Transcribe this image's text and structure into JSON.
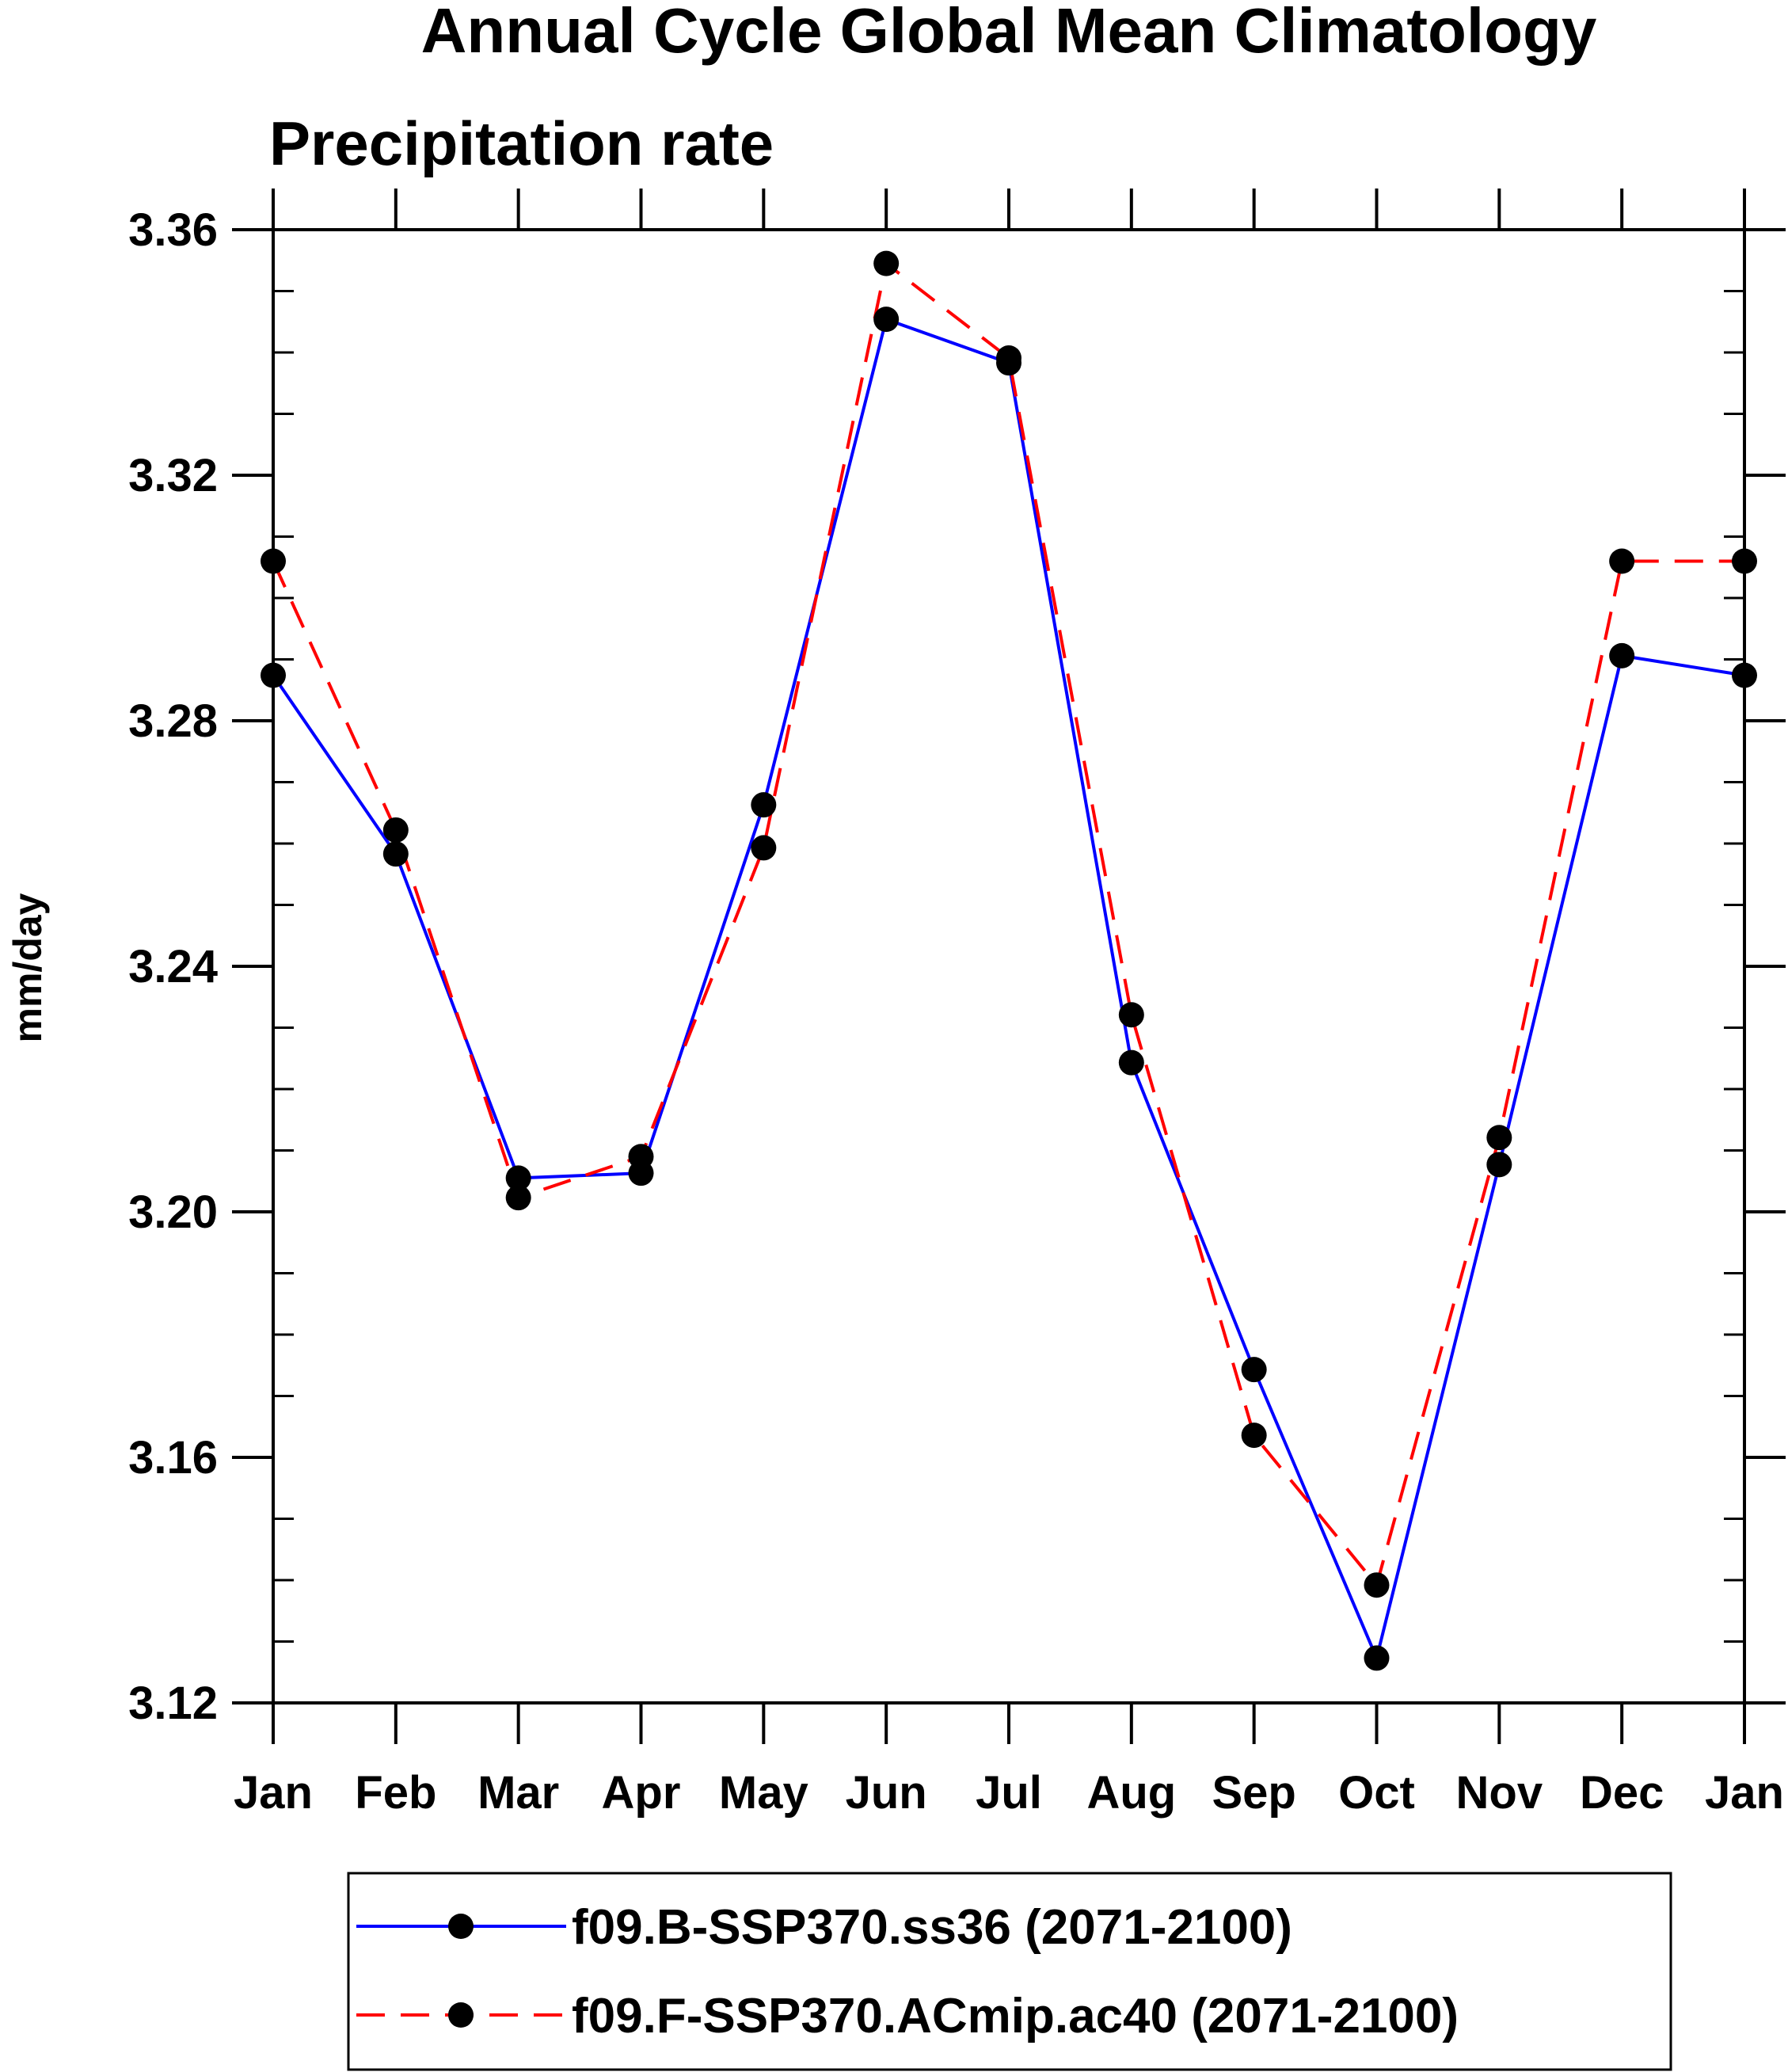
{
  "chart_data": {
    "type": "line",
    "title": "Annual Cycle Global Mean Climatology",
    "subtitle": "Precipitation rate",
    "xlabel": "",
    "ylabel": "mm/day",
    "categories": [
      "Jan",
      "Feb",
      "Mar",
      "Apr",
      "May",
      "Jun",
      "Jul",
      "Aug",
      "Sep",
      "Oct",
      "Nov",
      "Dec",
      "Jan"
    ],
    "ylim": [
      3.12,
      3.36
    ],
    "yticks": [
      3.12,
      3.16,
      3.2,
      3.24,
      3.28,
      3.32,
      3.36
    ],
    "ytick_labels": [
      "3.12",
      "3.16",
      "3.20",
      "3.24",
      "3.28",
      "3.32",
      "3.36"
    ],
    "grid": false,
    "legend_position": "bottom",
    "series": [
      {
        "name": "f09.B-SSP370.ss36 (2071-2100)",
        "color": "#0000ff",
        "dash": "solid",
        "values": [
          3.2874,
          3.2583,
          3.2055,
          3.2063,
          3.2663,
          3.3454,
          3.3383,
          3.2243,
          3.1743,
          3.1273,
          3.2077,
          3.2906,
          3.2874
        ]
      },
      {
        "name": "f09.F-SSP370.ACmip.ac40 (2071-2100)",
        "color": "#ff0000",
        "dash": "dashed",
        "values": [
          3.306,
          3.2622,
          3.2023,
          3.209,
          3.2593,
          3.3545,
          3.3391,
          3.2321,
          3.1636,
          3.1392,
          3.2121,
          3.306,
          3.306
        ]
      }
    ]
  }
}
